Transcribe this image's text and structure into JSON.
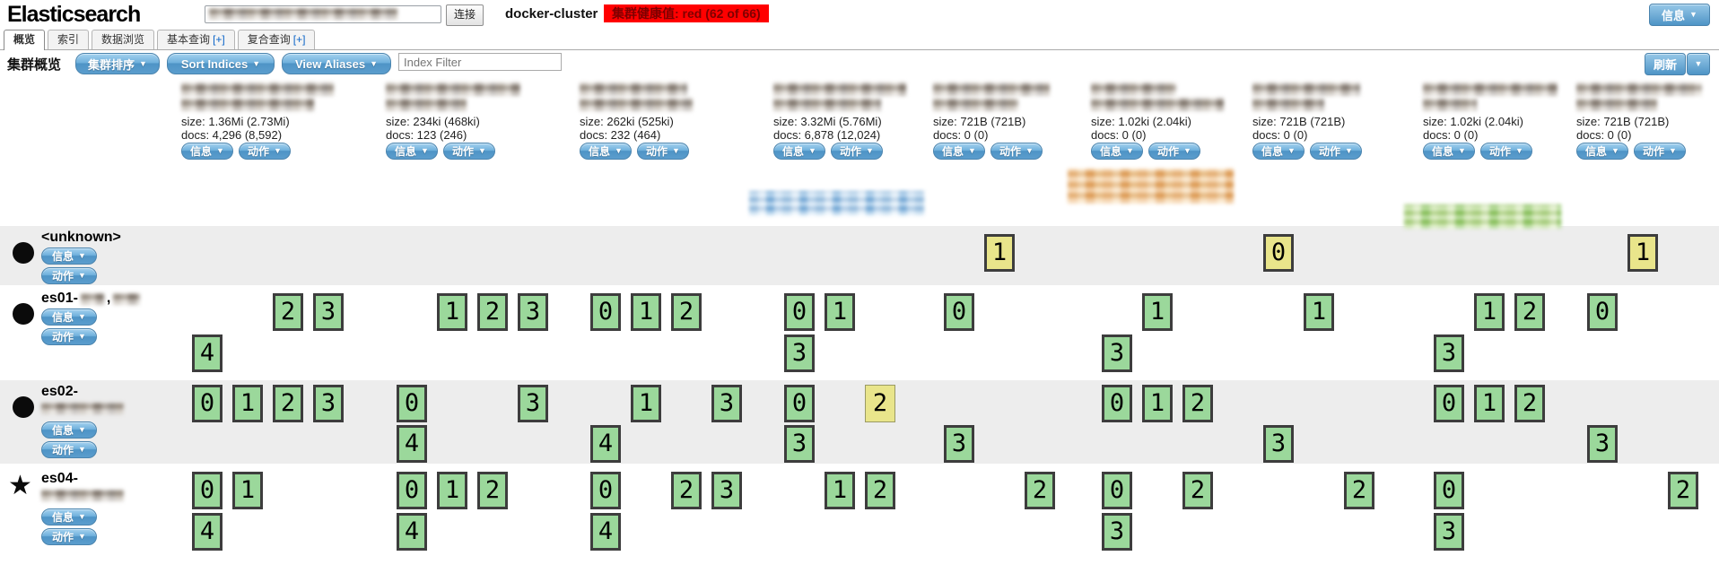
{
  "header": {
    "app_title": "Elasticsearch",
    "connect_button": "连接",
    "cluster_name": "docker-cluster",
    "health_badge": "集群健康值: red (62 of 66)",
    "info_button": "信息",
    "dropdown_arrow": "▼"
  },
  "tabs": [
    {
      "label": "概览",
      "active": true
    },
    {
      "label": "索引",
      "active": false
    },
    {
      "label": "数据浏览",
      "active": false
    },
    {
      "label": "基本查询",
      "suffix": "[+]",
      "active": false
    },
    {
      "label": "复合查询",
      "suffix": "[+]",
      "active": false
    }
  ],
  "toolbar": {
    "section_label": "集群概览",
    "cluster_sort_button": "集群排序",
    "sort_indices_button": "Sort Indices",
    "view_aliases_button": "View Aliases",
    "filter_placeholder": "Index Filter",
    "refresh_button": "刷新"
  },
  "shard_buttons": {
    "info": "信息",
    "actions": "动作"
  },
  "indices": [
    {
      "size": "size: 1.36Mi (2.73Mi)",
      "docs": "docs: 4,296 (8,592)"
    },
    {
      "size": "size: 234ki (468ki)",
      "docs": "docs: 123 (246)"
    },
    {
      "size": "size: 262ki (525ki)",
      "docs": "docs: 232 (464)"
    },
    {
      "size": "size: 3.32Mi (5.76Mi)",
      "docs": "docs: 6,878 (12,024)"
    },
    {
      "size": "size: 721B (721B)",
      "docs": "docs: 0 (0)"
    },
    {
      "size": "size: 1.02ki (2.04ki)",
      "docs": "docs: 0 (0)"
    },
    {
      "size": "size: 721B (721B)",
      "docs": "docs: 0 (0)"
    },
    {
      "size": "size: 1.02ki (2.04ki)",
      "docs": "docs: 0 (0)"
    },
    {
      "size": "size: 721B (721B)",
      "docs": "docs: 0 (0)"
    }
  ],
  "nodes": [
    {
      "name": "<unknown>",
      "icon": "circle",
      "redacted_name": false,
      "inline_redacted": false,
      "cells": [
        [],
        [],
        [],
        [],
        [
          [
            "",
            "1y"
          ]
        ],
        [],
        [
          [
            "0y"
          ]
        ],
        [],
        [
          [
            "",
            "1y"
          ]
        ]
      ]
    },
    {
      "name": "es01-",
      "name_separator": ",",
      "icon": "circle",
      "redacted_name": false,
      "inline_redacted": true,
      "cells": [
        [
          [
            "",
            "",
            "2",
            "3"
          ],
          [
            "4"
          ]
        ],
        [
          [
            "",
            "1",
            "2",
            "3"
          ]
        ],
        [
          [
            "0",
            "1",
            "2"
          ]
        ],
        [
          [
            "0",
            "1"
          ],
          [
            "3"
          ]
        ],
        [
          [
            "0"
          ]
        ],
        [
          [
            "",
            "1"
          ],
          [
            "3"
          ]
        ],
        [
          [
            "",
            "1"
          ]
        ],
        [
          [
            "",
            "1",
            "2"
          ],
          [
            "3"
          ]
        ],
        [
          [
            "0"
          ]
        ]
      ]
    },
    {
      "name": "es02-",
      "icon": "circle",
      "redacted_name": true,
      "inline_redacted": false,
      "cells": [
        [
          [
            "0",
            "1",
            "2",
            "3"
          ]
        ],
        [
          [
            "0",
            "",
            "",
            "3"
          ],
          [
            "4"
          ]
        ],
        [
          [
            "",
            "1",
            "",
            "3"
          ],
          [
            "4"
          ]
        ],
        [
          [
            "0",
            "",
            "2t"
          ],
          [
            "3"
          ]
        ],
        [
          [],
          [
            "3"
          ]
        ],
        [
          [
            "0",
            "1",
            "2"
          ]
        ],
        [
          [],
          [
            "3"
          ]
        ],
        [
          [
            "0",
            "1",
            "2"
          ]
        ],
        [
          [],
          [
            "3"
          ]
        ]
      ]
    },
    {
      "name": "es04-",
      "icon": "star",
      "redacted_name": true,
      "inline_redacted": false,
      "cells": [
        [
          [
            "0",
            "1"
          ],
          [
            "4"
          ]
        ],
        [
          [
            "0",
            "1",
            "2"
          ],
          [
            "4"
          ]
        ],
        [
          [
            "0",
            "",
            "2",
            "3"
          ],
          [
            "4"
          ]
        ],
        [
          [
            "",
            "1",
            "2"
          ]
        ],
        [
          [
            "",
            "",
            "2"
          ]
        ],
        [
          [
            "0",
            "",
            "2"
          ],
          [
            "3"
          ]
        ],
        [
          [
            "",
            "",
            "2"
          ]
        ],
        [
          [
            "0"
          ],
          [
            "3"
          ]
        ],
        [
          [
            "",
            "",
            "2"
          ]
        ]
      ]
    }
  ],
  "colors": {
    "shard_green": "#9bd89b",
    "shard_yellow": "#e9e58b",
    "health_red": "#ff0000",
    "button_blue": "#4e94c6"
  }
}
